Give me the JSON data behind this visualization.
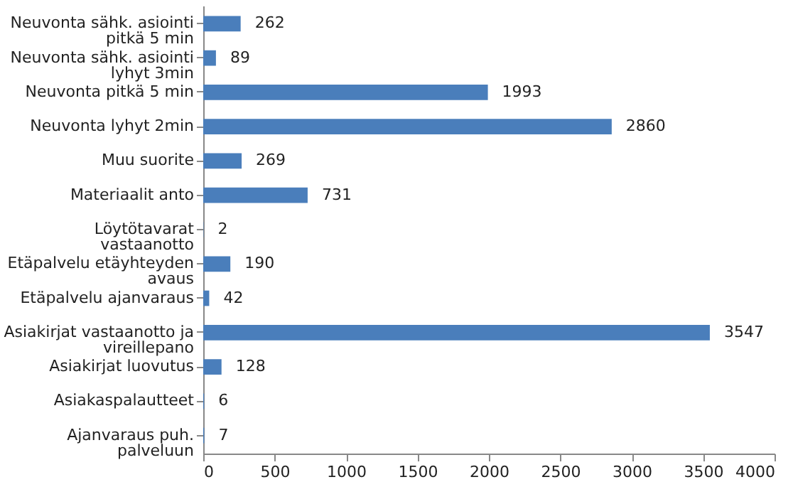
{
  "chart_data": {
    "type": "bar",
    "orientation": "horizontal",
    "categories": [
      "Neuvonta sähk. asiointi\npitkä 5 min",
      "Neuvonta sähk. asiointi\nlyhyt 3min",
      "Neuvonta pitkä 5 min",
      "Neuvonta lyhyt 2min",
      "Muu suorite",
      "Materiaalit anto",
      "Löytötavarat\nvastaanotto",
      "Etäpalvelu etäyhteyden\navaus",
      "Etäpalvelu ajanvaraus",
      "Asiakirjat vastaanotto ja\nvireillepano",
      "Asiakirjat luovutus",
      "Asiakaspalautteet",
      "Ajanvaraus puh.\npalveluun"
    ],
    "values": [
      262,
      89,
      1993,
      2860,
      269,
      731,
      2,
      190,
      42,
      3547,
      128,
      6,
      7
    ],
    "color": "#4a7ebb",
    "xlim": [
      0,
      4000
    ],
    "xticks": [
      0,
      500,
      1000,
      1500,
      2000,
      2500,
      3000,
      3500,
      4000
    ],
    "data_labels": true,
    "grid": false
  }
}
